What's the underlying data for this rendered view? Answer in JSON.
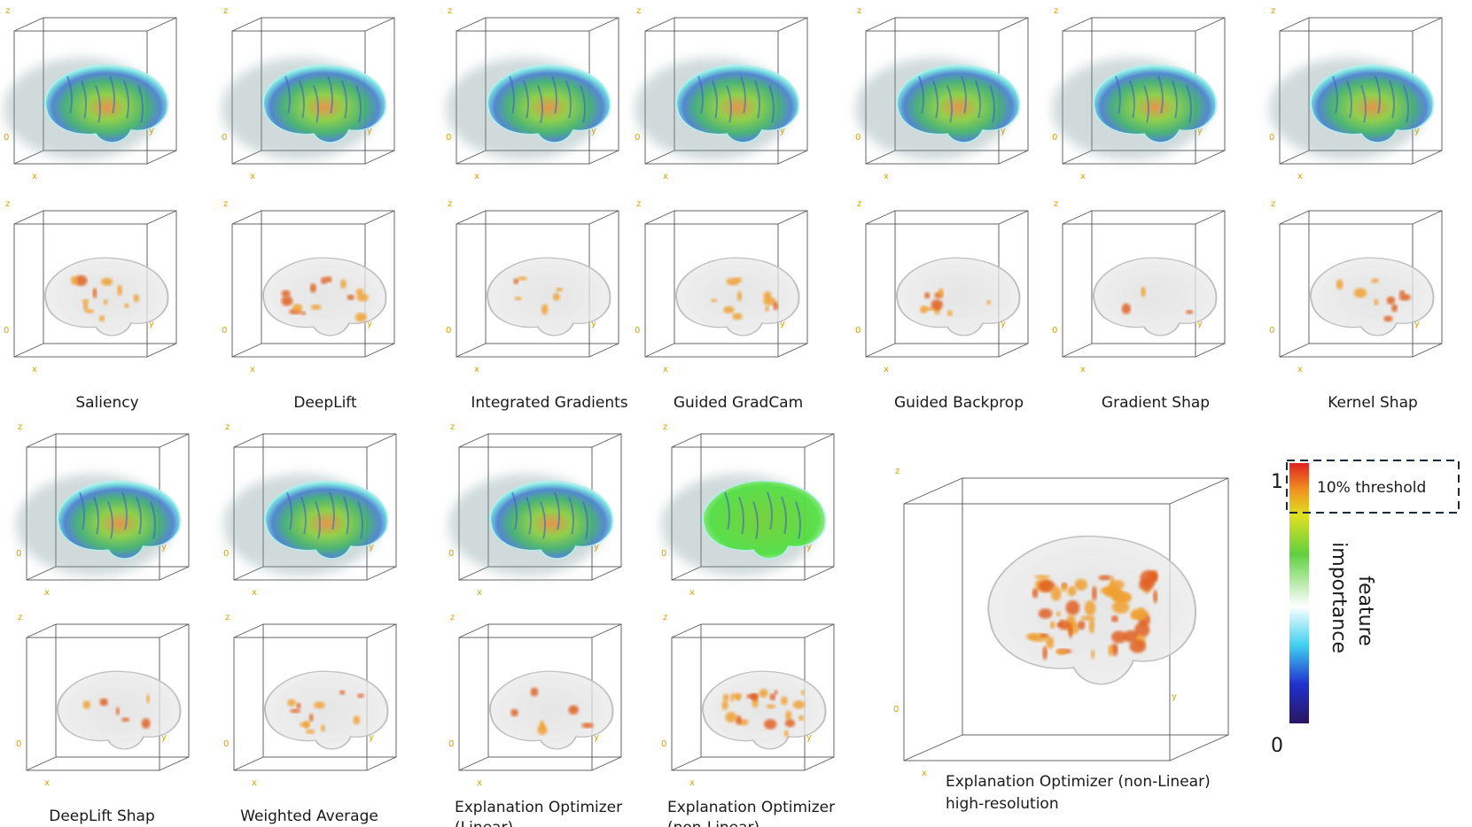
{
  "panels_top": [
    {
      "label_lines": [
        "Saliency"
      ]
    },
    {
      "label_lines": [
        "DeepLift"
      ]
    },
    {
      "label_lines": [
        "Integrated Gradients"
      ]
    },
    {
      "label_lines": [
        "Guided GradCam"
      ]
    },
    {
      "label_lines": [
        "Guided Backprop"
      ]
    },
    {
      "label_lines": [
        "Gradient Shap"
      ]
    },
    {
      "label_lines": [
        "Kernel Shap"
      ]
    }
  ],
  "panels_bottom": [
    {
      "label_lines": [
        "DeepLift Shap"
      ]
    },
    {
      "label_lines": [
        "Weighted Average"
      ]
    },
    {
      "label_lines": [
        "Explanation Optimizer",
        "(Linear)"
      ]
    },
    {
      "label_lines": [
        "Explanation Optimizer",
        "(non-Linear)"
      ]
    }
  ],
  "big_panel": {
    "label_lines": [
      "Explanation Optimizer (non-Linear)",
      "high-resolution"
    ]
  },
  "axis_labels": {
    "z": "z",
    "x": "x",
    "y": "y",
    "origin": "0"
  },
  "colorbar": {
    "max": 1,
    "min": 0,
    "threshold": "10% threshold",
    "title_lines": [
      "feature",
      "importance"
    ]
  }
}
